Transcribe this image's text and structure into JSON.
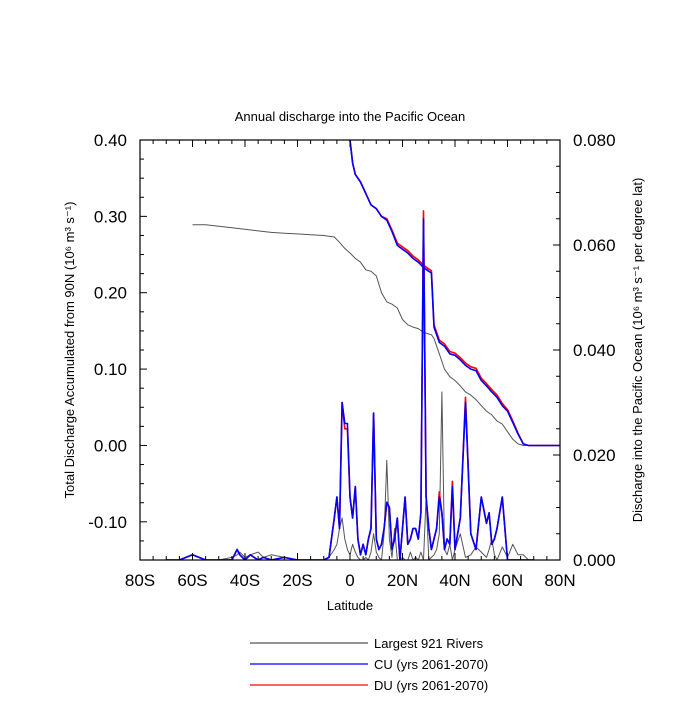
{
  "chart_data": {
    "type": "line",
    "title": "Annual discharge into the Pacific Ocean",
    "xlabel": "Latitude",
    "ylabel_left": "Total Discharge Accumulated from 90N (10⁶ m³ s⁻¹)",
    "ylabel_right": "Discharge into the Pacific Ocean (10⁶ m³ s⁻¹ per degree lat)",
    "xlim": [
      -80,
      80
    ],
    "ylim_left": [
      -0.15,
      0.4
    ],
    "ylim_right": [
      0.0,
      0.08
    ],
    "x_ticks": [
      {
        "value": -80,
        "label": "80S"
      },
      {
        "value": -60,
        "label": "60S"
      },
      {
        "value": -40,
        "label": "40S"
      },
      {
        "value": -20,
        "label": "20S"
      },
      {
        "value": 0,
        "label": "0"
      },
      {
        "value": 20,
        "label": "20N"
      },
      {
        "value": 40,
        "label": "40N"
      },
      {
        "value": 60,
        "label": "60N"
      },
      {
        "value": 80,
        "label": "80N"
      }
    ],
    "y_left_ticks": [
      {
        "value": 0.4,
        "label": "0.40"
      },
      {
        "value": 0.3,
        "label": "0.30"
      },
      {
        "value": 0.2,
        "label": "0.20"
      },
      {
        "value": 0.1,
        "label": "0.10"
      },
      {
        "value": 0.0,
        "label": "0.00"
      },
      {
        "value": -0.1,
        "label": "-0.10"
      }
    ],
    "y_right_ticks": [
      {
        "value": 0.08,
        "label": "0.080"
      },
      {
        "value": 0.06,
        "label": "0.060"
      },
      {
        "value": 0.04,
        "label": "0.040"
      },
      {
        "value": 0.02,
        "label": "0.020"
      },
      {
        "value": 0.0,
        "label": "0.000"
      }
    ],
    "legend_position": "bottom",
    "legend": [
      {
        "name": "Largest 921 Rivers",
        "color": "#555555"
      },
      {
        "name": "CU (yrs 2061-2070)",
        "color": "#0000ff"
      },
      {
        "name": "DU (yrs 2061-2070)",
        "color": "#ff0000"
      }
    ],
    "series": [
      {
        "name": "Largest 921 Rivers",
        "axis": "left",
        "color": "#555555",
        "x": [
          -60,
          -55,
          -50,
          -45,
          -40,
          -35,
          -30,
          -25,
          -20,
          -15,
          -10,
          -6,
          -4,
          -2,
          0,
          2,
          4,
          6,
          8,
          10,
          12,
          14,
          16,
          18,
          20,
          22,
          24,
          26,
          28,
          30,
          31,
          32,
          34,
          36,
          38,
          40,
          42,
          44,
          46,
          48,
          50,
          52,
          54,
          56,
          58,
          60,
          62,
          64,
          66,
          68,
          70,
          75,
          80
        ],
        "y": [
          0.289,
          0.289,
          0.287,
          0.285,
          0.283,
          0.281,
          0.279,
          0.278,
          0.277,
          0.276,
          0.275,
          0.273,
          0.266,
          0.258,
          0.252,
          0.245,
          0.24,
          0.23,
          0.228,
          0.222,
          0.2,
          0.188,
          0.185,
          0.18,
          0.165,
          0.158,
          0.155,
          0.153,
          0.148,
          0.146,
          0.145,
          0.14,
          0.12,
          0.1,
          0.09,
          0.085,
          0.078,
          0.07,
          0.066,
          0.06,
          0.052,
          0.045,
          0.04,
          0.032,
          0.028,
          0.018,
          0.008,
          0.002,
          0.0,
          0.0,
          0.0,
          0.0,
          0.0
        ]
      },
      {
        "name": "CU (yrs 2061-2070)",
        "axis": "left",
        "color": "#0000ff",
        "x": [
          0,
          1,
          2,
          4,
          6,
          8,
          10,
          12,
          14,
          16,
          18,
          20,
          22,
          24,
          26,
          28,
          30,
          31,
          32,
          34,
          36,
          38,
          40,
          42,
          44,
          46,
          48,
          50,
          52,
          54,
          56,
          58,
          60,
          62,
          64,
          66,
          68,
          70,
          75,
          80
        ],
        "y": [
          0.4,
          0.37,
          0.355,
          0.345,
          0.33,
          0.315,
          0.31,
          0.3,
          0.295,
          0.28,
          0.262,
          0.257,
          0.252,
          0.245,
          0.24,
          0.233,
          0.228,
          0.226,
          0.155,
          0.135,
          0.13,
          0.12,
          0.118,
          0.112,
          0.105,
          0.1,
          0.098,
          0.085,
          0.078,
          0.07,
          0.063,
          0.052,
          0.045,
          0.03,
          0.015,
          0.002,
          0.0,
          0.0,
          0.0,
          0.0
        ]
      },
      {
        "name": "DU (yrs 2061-2070)",
        "axis": "left",
        "color": "#ff0000",
        "x": [
          0,
          1,
          2,
          4,
          6,
          8,
          10,
          12,
          14,
          16,
          18,
          20,
          22,
          24,
          26,
          28,
          30,
          31,
          32,
          34,
          36,
          38,
          40,
          42,
          44,
          46,
          48,
          50,
          52,
          54,
          56,
          58,
          60,
          62,
          64,
          66,
          68,
          70,
          75,
          80
        ],
        "y": [
          0.4,
          0.37,
          0.355,
          0.345,
          0.33,
          0.315,
          0.31,
          0.3,
          0.297,
          0.282,
          0.265,
          0.26,
          0.255,
          0.248,
          0.243,
          0.236,
          0.231,
          0.229,
          0.158,
          0.138,
          0.133,
          0.123,
          0.121,
          0.115,
          0.108,
          0.103,
          0.101,
          0.088,
          0.081,
          0.073,
          0.066,
          0.055,
          0.047,
          0.032,
          0.016,
          0.002,
          0.0,
          0.0,
          0.0,
          0.0
        ]
      },
      {
        "name": "Largest 921 Rivers",
        "axis": "right",
        "color": "#555555",
        "x": [
          -70,
          -65,
          -60,
          -55,
          -50,
          -45,
          -43,
          -42,
          -40,
          -38,
          -35,
          -33,
          -30,
          -25,
          -20,
          -15,
          -10,
          -8,
          -6,
          -5,
          -4,
          -3,
          -2,
          -1,
          0,
          1,
          2,
          3,
          4,
          5,
          6,
          7,
          8,
          9,
          10,
          11,
          12,
          13,
          14,
          15,
          16,
          17,
          18,
          19,
          20,
          21,
          22,
          23,
          24,
          25,
          26,
          27,
          28,
          29,
          30,
          31,
          32,
          33,
          34,
          35,
          36,
          37,
          38,
          39,
          40,
          42,
          44,
          46,
          48,
          50,
          52,
          53,
          54,
          55,
          56,
          58,
          60,
          62,
          64,
          66,
          68,
          70
        ],
        "y": [
          0.0,
          0.0,
          0.0,
          0.0,
          0.0,
          0.0005,
          0.001,
          0.0015,
          0.0005,
          0.001,
          0.0015,
          0.0005,
          0.001,
          0.0005,
          0.0,
          0.0,
          0.0,
          0.0005,
          0.002,
          0.003,
          0.006,
          0.008,
          0.004,
          0.002,
          0.001,
          0.003,
          0.0015,
          0.0005,
          0.0,
          0.0,
          0.0005,
          0.0,
          0.0015,
          0.005,
          0.0015,
          0.0005,
          0.0,
          0.005,
          0.019,
          0.004,
          0.0005,
          0.006,
          0.0,
          0.0,
          0.0005,
          0.0,
          0.0,
          0.0015,
          0.0,
          0.0005,
          0.0,
          0.0015,
          0.0,
          0.012,
          0.0,
          0.0005,
          0.001,
          0.002,
          0.005,
          0.032,
          0.002,
          0.001,
          0.003,
          0.0,
          0.002,
          0.005,
          0.0005,
          0.001,
          0.0025,
          0.0015,
          0.0005,
          0.002,
          0.004,
          0.001,
          0.0,
          0.0025,
          0.0005,
          0.003,
          0.001,
          0.001,
          0.0,
          0.0
        ]
      },
      {
        "name": "CU (yrs 2061-2070)",
        "axis": "right",
        "color": "#0000ff",
        "x": [
          -70,
          -65,
          -60,
          -55,
          -50,
          -45,
          -43,
          -42,
          -40,
          -38,
          -35,
          -33,
          -30,
          -25,
          -20,
          -15,
          -10,
          -8,
          -6,
          -5,
          -4,
          -3,
          -2,
          -1,
          0,
          1,
          2,
          3,
          4,
          5,
          6,
          7,
          8,
          9,
          10,
          11,
          12,
          13,
          14,
          15,
          16,
          17,
          18,
          19,
          20,
          21,
          22,
          23,
          24,
          25,
          26,
          27,
          28,
          29,
          30,
          31,
          32,
          33,
          34,
          35,
          36,
          37,
          38,
          39,
          40,
          42,
          44,
          46,
          48,
          50,
          52,
          53,
          54,
          55,
          56,
          58,
          60,
          62,
          64,
          66,
          68,
          70
        ],
        "y": [
          0.0,
          0.0,
          0.001,
          0.0,
          0.0,
          0.0,
          0.002,
          0.001,
          0.0,
          0.001,
          0.0,
          0.0005,
          0.0,
          0.0005,
          0.0,
          0.0,
          0.0,
          0.0005,
          0.008,
          0.012,
          0.006,
          0.03,
          0.026,
          0.026,
          0.012,
          0.008,
          0.014,
          0.004,
          0.001,
          0.003,
          0.001,
          0.004,
          0.006,
          0.028,
          0.004,
          0.002,
          0.003,
          0.006,
          0.011,
          0.01,
          0.002,
          0.004,
          0.008,
          0.0,
          0.006,
          0.012,
          0.003,
          0.004,
          0.006,
          0.006,
          0.004,
          0.009,
          0.065,
          0.012,
          0.006,
          0.002,
          0.004,
          0.006,
          0.012,
          0.009,
          0.002,
          0.004,
          0.003,
          0.014,
          0.002,
          0.008,
          0.03,
          0.005,
          0.002,
          0.012,
          0.007,
          0.009,
          0.003,
          0.004,
          0.006,
          0.012,
          0.0,
          0.0,
          0.0,
          0.0,
          0.0,
          0.0
        ]
      },
      {
        "name": "DU (yrs 2061-2070)",
        "axis": "right",
        "color": "#ff0000",
        "x": [
          -70,
          -65,
          -60,
          -55,
          -50,
          -45,
          -43,
          -42,
          -40,
          -38,
          -35,
          -33,
          -30,
          -25,
          -20,
          -15,
          -10,
          -8,
          -6,
          -5,
          -4,
          -3,
          -2,
          -1,
          0,
          1,
          2,
          3,
          4,
          5,
          6,
          7,
          8,
          9,
          10,
          11,
          12,
          13,
          14,
          15,
          16,
          17,
          18,
          19,
          20,
          21,
          22,
          23,
          24,
          25,
          26,
          27,
          28,
          29,
          30,
          31,
          32,
          33,
          34,
          35,
          36,
          37,
          38,
          39,
          40,
          42,
          44,
          46,
          48,
          50,
          52,
          53,
          54,
          55,
          56,
          58,
          60,
          62,
          64,
          66,
          68,
          70
        ],
        "y": [
          0.0,
          0.0,
          0.001,
          0.0,
          0.0,
          0.0,
          0.002,
          0.001,
          0.0,
          0.001,
          0.0,
          0.0005,
          0.0,
          0.0005,
          0.0,
          0.0,
          0.0,
          0.0005,
          0.008,
          0.012,
          0.006,
          0.03,
          0.025,
          0.025,
          0.012,
          0.008,
          0.014,
          0.004,
          0.001,
          0.003,
          0.001,
          0.004,
          0.006,
          0.028,
          0.004,
          0.002,
          0.003,
          0.006,
          0.011,
          0.01,
          0.002,
          0.004,
          0.008,
          0.0,
          0.006,
          0.012,
          0.003,
          0.004,
          0.006,
          0.006,
          0.004,
          0.009,
          0.0665,
          0.012,
          0.006,
          0.002,
          0.004,
          0.006,
          0.013,
          0.009,
          0.002,
          0.004,
          0.003,
          0.015,
          0.002,
          0.008,
          0.031,
          0.005,
          0.002,
          0.012,
          0.007,
          0.009,
          0.003,
          0.004,
          0.006,
          0.012,
          0.0,
          0.0,
          0.0,
          0.0,
          0.0,
          0.0
        ]
      }
    ]
  }
}
